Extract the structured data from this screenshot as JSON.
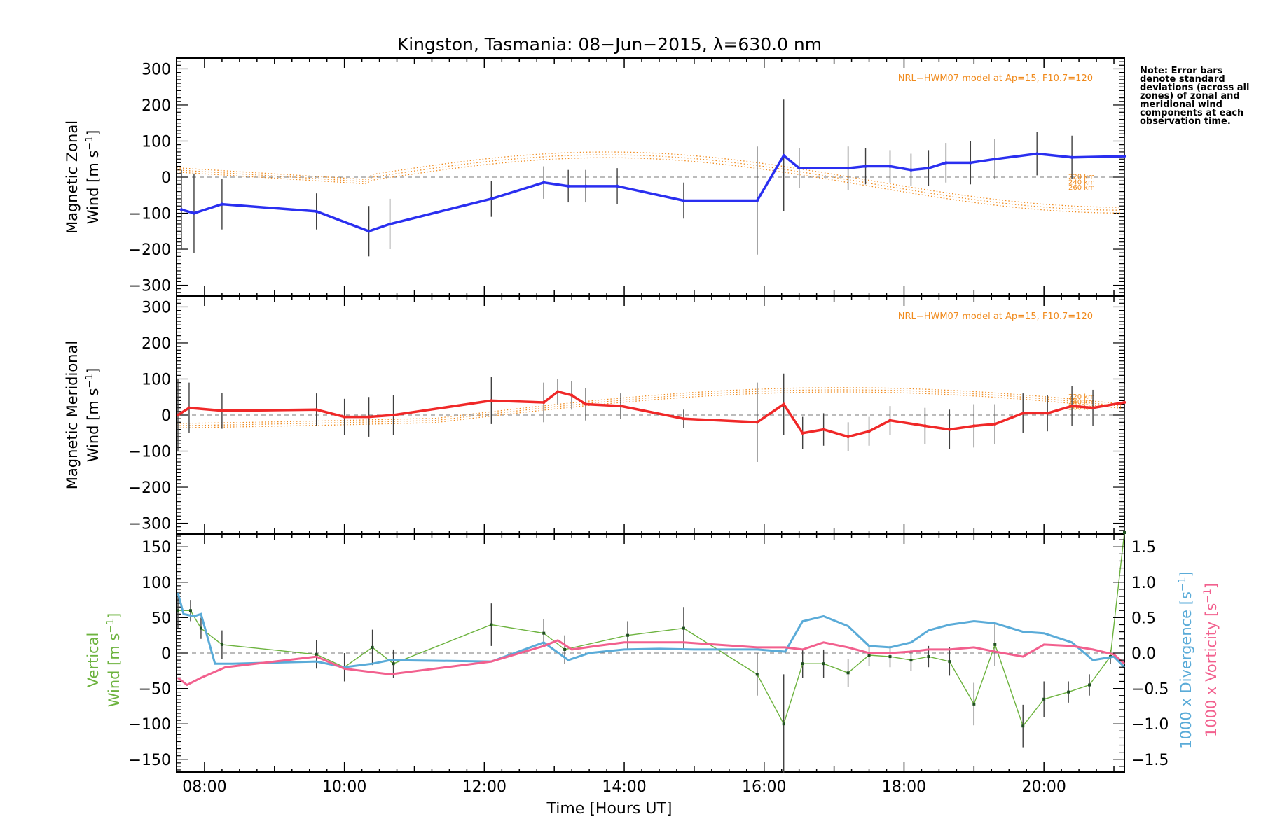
{
  "title": "Kingston, Tasmania: 08−Jun−2015, λ=630.0 nm",
  "note": "Note: Error bars denote standard deviations (across all zones) of zonal and meridional wind components at each observation time.",
  "xaxis": {
    "label": "Time [Hours UT]",
    "range": [
      7.6,
      21.15
    ],
    "ticks": [
      8,
      10,
      12,
      14,
      16,
      18,
      20
    ],
    "tick_labels": [
      "08:00",
      "10:00",
      "12:00",
      "14:00",
      "16:00",
      "18:00",
      "20:00"
    ]
  },
  "colors": {
    "zonal": "#2a2ff0",
    "meridional": "#f02828",
    "vertical": "#6db33f",
    "divergence": "#5aabd8",
    "vorticity": "#f2608e",
    "model": "#f08a1c",
    "error_bar": "#404040"
  },
  "chart_data": [
    {
      "type": "line",
      "panel": "zonal",
      "ylabel_line1": "Magnetic Zonal",
      "ylabel_line2": "Wind [m s",
      "ylabel_sup": "−1",
      "ylabel_close": "]",
      "ylim": [
        -330,
        330
      ],
      "yticks": [
        -300,
        -200,
        -100,
        0,
        100,
        200,
        300
      ],
      "model_label": "NRL−HWM07 model at Ap=15, F10.7=120",
      "model_heights": [
        "220 km",
        "240 km",
        "260 km"
      ],
      "x": [
        7.67,
        7.85,
        8.25,
        9.6,
        10.35,
        10.65,
        12.1,
        12.85,
        13.2,
        13.45,
        13.9,
        14.85,
        15.9,
        16.28,
        16.5,
        17.2,
        17.45,
        17.8,
        18.1,
        18.35,
        18.6,
        18.95,
        19.3,
        19.9,
        20.4,
        21.15
      ],
      "y": [
        -90,
        -100,
        -75,
        -95,
        -150,
        -130,
        -60,
        -15,
        -25,
        -25,
        -25,
        -65,
        -65,
        60,
        25,
        25,
        30,
        30,
        20,
        25,
        40,
        40,
        50,
        65,
        55,
        58
      ],
      "err": [
        110,
        110,
        70,
        50,
        70,
        70,
        50,
        45,
        45,
        45,
        50,
        50,
        150,
        155,
        55,
        60,
        50,
        45,
        45,
        50,
        55,
        60,
        55,
        60,
        60,
        60
      ],
      "series_label": "zonal"
    },
    {
      "type": "line",
      "panel": "meridional",
      "ylabel_line1": "Magnetic Meridional",
      "ylabel_line2": "Wind [m s",
      "ylabel_sup": "−1",
      "ylabel_close": "]",
      "ylim": [
        -330,
        330
      ],
      "yticks": [
        -300,
        -200,
        -100,
        0,
        100,
        200,
        300
      ],
      "model_label": "NRL−HWM07 model at Ap=15, F10.7=120",
      "model_heights": [
        "220 km",
        "240 km",
        "260 km"
      ],
      "x": [
        7.62,
        7.78,
        8.25,
        9.6,
        10.0,
        10.35,
        10.7,
        12.1,
        12.85,
        13.05,
        13.25,
        13.45,
        13.95,
        14.85,
        15.9,
        16.28,
        16.55,
        16.85,
        17.2,
        17.5,
        17.8,
        18.3,
        18.65,
        19.0,
        19.3,
        19.7,
        20.05,
        20.4,
        20.7,
        21.15
      ],
      "y": [
        0,
        20,
        12,
        15,
        -5,
        -5,
        0,
        40,
        35,
        65,
        55,
        30,
        25,
        -10,
        -20,
        30,
        -50,
        -40,
        -60,
        -45,
        -15,
        -30,
        -40,
        -30,
        -25,
        5,
        5,
        25,
        20,
        35
      ],
      "err": [
        100,
        70,
        50,
        45,
        50,
        55,
        55,
        65,
        55,
        35,
        40,
        45,
        35,
        25,
        110,
        85,
        45,
        45,
        40,
        40,
        40,
        50,
        55,
        60,
        55,
        55,
        50,
        55,
        50,
        50
      ],
      "series_label": "meridional"
    },
    {
      "type": "line",
      "panel": "vertical",
      "ylabel_line1": "Vertical",
      "ylabel_line2": "Wind [m s",
      "ylabel_sup": "−1",
      "ylabel_close": "]",
      "ylim": [
        -168,
        168
      ],
      "yticks": [
        -150,
        -100,
        -50,
        0,
        50,
        100,
        150
      ],
      "y2label_div": "1000 x Divergence [s",
      "y2label_vor": "1000 x Vorticity [s",
      "y2label_sup": "−1",
      "y2label_close": "]",
      "y2lim": [
        -1.68,
        1.68
      ],
      "y2ticks": [
        -1.5,
        -1.0,
        -0.5,
        0.0,
        0.5,
        1.0,
        1.5
      ],
      "y2tick_labels": [
        "−1.5",
        "−1.0",
        "−0.5",
        "0.0",
        "0.5",
        "1.0",
        "1.5"
      ],
      "x": [
        7.62,
        7.8,
        7.95,
        8.25,
        9.6,
        10.0,
        10.4,
        10.7,
        12.1,
        12.85,
        13.15,
        14.05,
        14.85,
        15.9,
        16.28,
        16.55,
        16.85,
        17.2,
        17.5,
        17.8,
        18.1,
        18.35,
        18.65,
        19.0,
        19.3,
        19.7,
        20.0,
        20.35,
        20.65,
        20.95,
        21.15
      ],
      "y": [
        60,
        60,
        35,
        12,
        -2,
        -20,
        8,
        -15,
        40,
        28,
        5,
        25,
        35,
        -30,
        -100,
        -15,
        -15,
        -28,
        -3,
        -5,
        -10,
        -5,
        -12,
        -72,
        12,
        -103,
        -65,
        -55,
        -45,
        -5,
        170
      ],
      "err": [
        25,
        15,
        15,
        20,
        20,
        20,
        25,
        20,
        30,
        20,
        20,
        20,
        30,
        30,
        70,
        20,
        20,
        20,
        15,
        15,
        15,
        15,
        20,
        30,
        30,
        30,
        25,
        15,
        15,
        10,
        10
      ],
      "div_x": [
        7.62,
        7.7,
        7.85,
        7.95,
        8.15,
        8.4,
        9.6,
        10.0,
        10.4,
        10.65,
        12.1,
        12.85,
        13.2,
        13.5,
        14.0,
        14.5,
        15.0,
        15.9,
        16.3,
        16.55,
        16.85,
        17.2,
        17.5,
        17.8,
        18.1,
        18.35,
        18.65,
        19.0,
        19.3,
        19.7,
        20.0,
        20.4,
        20.7,
        21.0,
        21.15
      ],
      "div_y": [
        0.85,
        0.55,
        0.52,
        0.55,
        -0.15,
        -0.15,
        -0.12,
        -0.2,
        -0.15,
        -0.1,
        -0.12,
        0.15,
        -0.1,
        0.0,
        0.05,
        0.06,
        0.05,
        0.05,
        0.02,
        0.45,
        0.52,
        0.38,
        0.1,
        0.08,
        0.15,
        0.32,
        0.4,
        0.45,
        0.42,
        0.3,
        0.28,
        0.15,
        -0.1,
        -0.05,
        -0.2
      ],
      "vor_x": [
        7.62,
        7.75,
        7.95,
        8.3,
        9.6,
        10.0,
        10.65,
        12.1,
        12.85,
        13.05,
        13.25,
        13.6,
        14.0,
        14.85,
        15.9,
        16.3,
        16.55,
        16.85,
        17.2,
        17.5,
        17.8,
        18.1,
        18.35,
        18.65,
        19.0,
        19.3,
        19.7,
        20.0,
        20.4,
        20.7,
        21.0,
        21.15
      ],
      "vor_y": [
        -0.35,
        -0.45,
        -0.35,
        -0.2,
        -0.05,
        -0.22,
        -0.3,
        -0.12,
        0.1,
        0.18,
        0.05,
        0.1,
        0.15,
        0.15,
        0.08,
        0.08,
        0.05,
        0.15,
        0.08,
        0.0,
        0.0,
        0.02,
        0.05,
        0.05,
        0.08,
        0.02,
        -0.05,
        0.12,
        0.1,
        0.05,
        -0.02,
        -0.15
      ]
    }
  ]
}
